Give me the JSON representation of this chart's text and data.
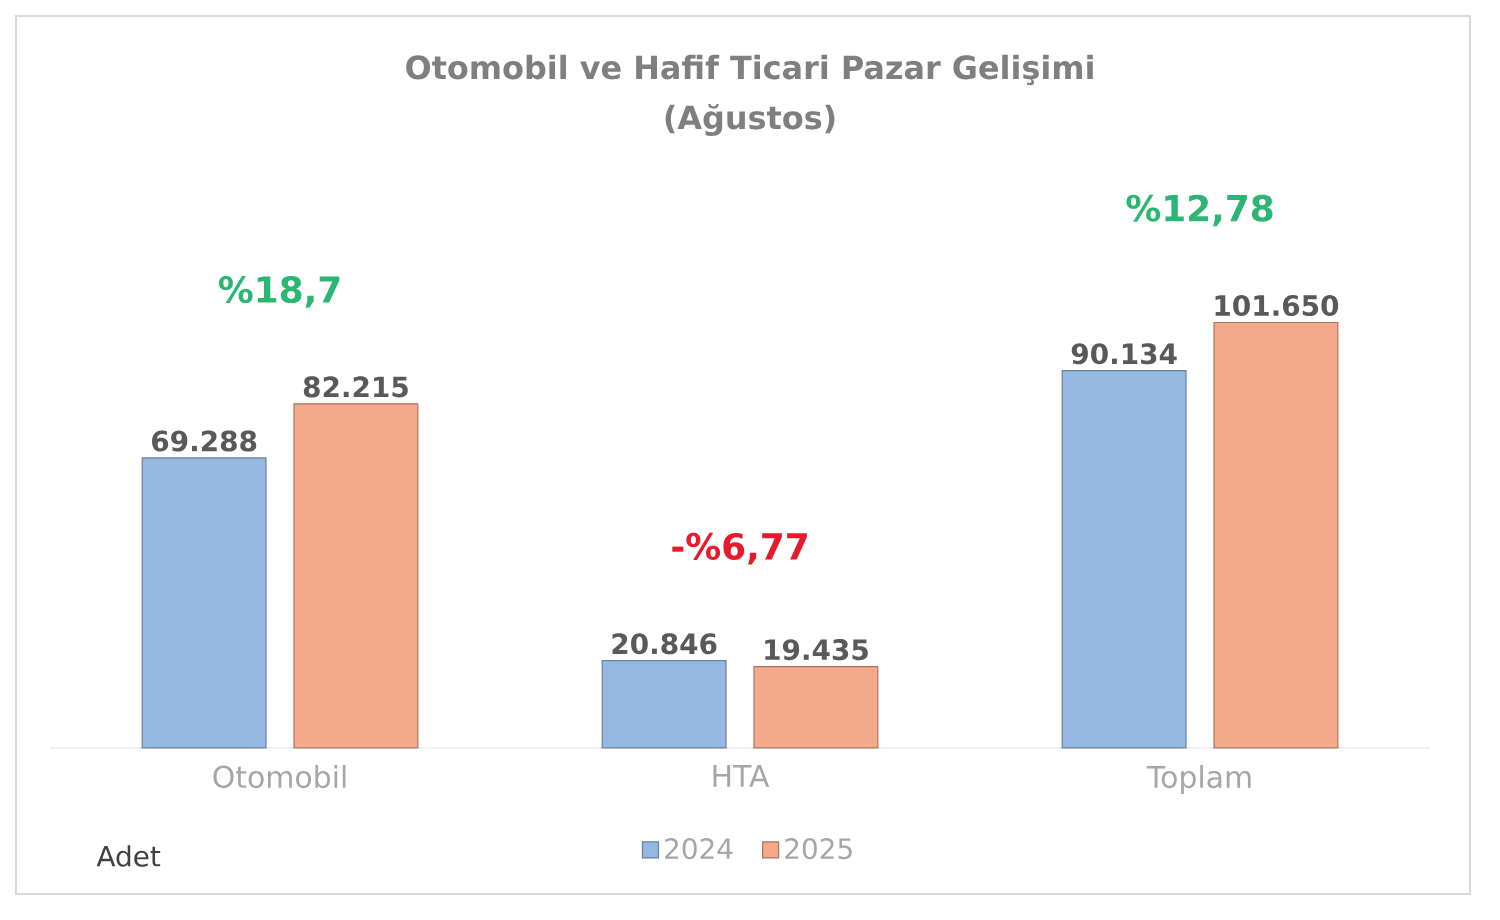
{
  "chart_data": {
    "type": "bar",
    "title": "Otomobil ve Hafif Ticari Pazar Gelişimi",
    "subtitle": "(Ağustos)",
    "categories": [
      "Otomobil",
      "HTA",
      "Toplam"
    ],
    "series": [
      {
        "name": "2024",
        "color": "#94b8e2",
        "values": [
          69288,
          20846,
          90134
        ],
        "value_labels": [
          "69.288",
          "20.846",
          "90.134"
        ]
      },
      {
        "name": "2025",
        "color": "#f4a98a",
        "values": [
          82215,
          19435,
          101650
        ],
        "value_labels": [
          "82.215",
          "19.435",
          "101.650"
        ]
      }
    ],
    "annotations": [
      "%18,7",
      "-%6,77",
      "%12,78",
      "Adet"
    ],
    "legend": "bottom"
  }
}
